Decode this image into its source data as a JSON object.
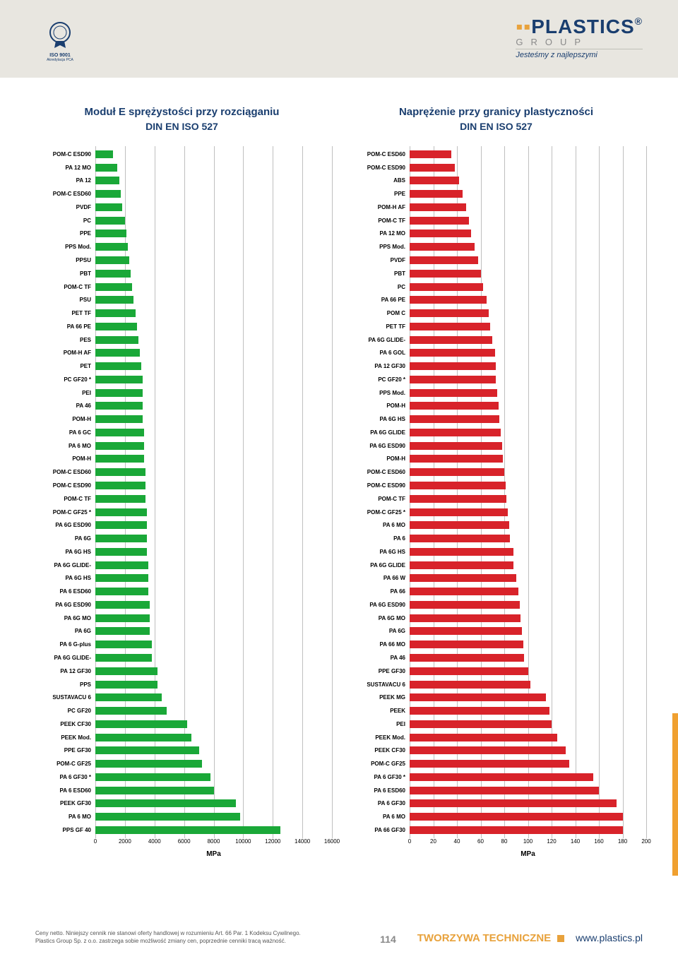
{
  "header": {
    "iso_label": "ISO 9001",
    "iso_sub": "Akredytacja PCA",
    "logo_main": "PLASTICS",
    "logo_sub": "GROUP",
    "logo_tag": "Jesteśmy z najlepszymi"
  },
  "chart_left": {
    "title": "Moduł E sprężystości przy rozciąganiu",
    "subtitle": "DIN EN ISO 527",
    "type": "bar-horizontal",
    "bar_color": "#1aa838",
    "grid_color": "#bfbfbf",
    "xlim": [
      0,
      16000
    ],
    "xticks": [
      0,
      2000,
      4000,
      6000,
      8000,
      10000,
      12000,
      14000,
      16000
    ],
    "xlabel": "MPa",
    "label_fontsize": 8,
    "title_fontsize": 15,
    "categories": [
      "POM-C ESD90",
      "PA 12 MO",
      "PA 12",
      "POM-C ESD60",
      "PVDF",
      "PC",
      "PPE",
      "PPS Mod.",
      "PPSU",
      "PBT",
      "POM-C TF",
      "PSU",
      "PET TF",
      "PA 66 PE",
      "PES",
      "POM-H AF",
      "PET",
      "PC GF20 *",
      "PEI",
      "PA 46",
      "POM-H",
      "PA 6 GC",
      "PA 6 MO",
      "POM-H",
      "POM-C ESD60",
      "POM-C ESD90",
      "POM-C TF",
      "POM-C GF25 *",
      "PA 6G ESD90",
      "PA 6G",
      "PA 6G HS",
      "PA 6G GLIDE-",
      "PA 6G HS",
      "PA 6 ESD60",
      "PA 6G ESD90",
      "PA 6G MO",
      "PA 6G",
      "PA 6 G-plus",
      "PA 6G GLIDE-",
      "PA 12 GF30",
      "PPS",
      "SUSTAVACU 6",
      "PC GF20",
      "PEEK CF30",
      "PEEK Mod.",
      "PPE GF30",
      "POM-C GF25",
      "PA 6 GF30 *",
      "PA 6 ESD60",
      "PEEK GF30",
      "PA 6 MO",
      "PPS GF 40"
    ],
    "values": [
      1200,
      1500,
      1600,
      1700,
      1800,
      2000,
      2100,
      2200,
      2300,
      2400,
      2500,
      2600,
      2700,
      2800,
      2900,
      3000,
      3100,
      3200,
      3200,
      3200,
      3200,
      3300,
      3300,
      3300,
      3400,
      3400,
      3400,
      3500,
      3500,
      3500,
      3500,
      3600,
      3600,
      3600,
      3700,
      3700,
      3700,
      3800,
      3800,
      4200,
      4200,
      4500,
      4800,
      6200,
      6500,
      7000,
      7200,
      7800,
      8000,
      9500,
      9800,
      12500
    ]
  },
  "chart_right": {
    "title": "Naprężenie przy granicy plastyczności",
    "subtitle": "DIN EN ISO 527",
    "type": "bar-horizontal",
    "bar_color": "#d8232a",
    "grid_color": "#bfbfbf",
    "xlim": [
      0,
      200
    ],
    "xticks": [
      0,
      20,
      40,
      60,
      80,
      100,
      120,
      140,
      160,
      180,
      200
    ],
    "xlabel": "MPa",
    "label_fontsize": 8,
    "title_fontsize": 15,
    "categories": [
      "POM-C ESD60",
      "POM-C ESD90",
      "ABS",
      "PPE",
      "POM-H AF",
      "POM-C TF",
      "PA 12 MO",
      "PPS Mod.",
      "PVDF",
      "PBT",
      "PC",
      "PA 66 PE",
      "POM C",
      "PET TF",
      "PA 6G GLIDE-",
      "PA 6 GOL",
      "PA 12 GF30",
      "PC GF20 *",
      "PPS Mod.",
      "POM-H",
      "PA 6G HS",
      "PA 6G GLIDE",
      "PA 6G ESD90",
      "POM-H",
      "POM-C ESD60",
      "POM-C ESD90",
      "POM-C TF",
      "POM-C GF25 *",
      "PA 6 MO",
      "PA 6",
      "PA 6G HS",
      "PA 6G GLIDE",
      "PA 66 W",
      "PA 66",
      "PA 6G ESD90",
      "PA 6G MO",
      "PA 6G",
      "PA 66 MO",
      "PA 46",
      "PPE GF30",
      "SUSTAVACU 6",
      "PEEK MG",
      "PEEK",
      "PEI",
      "PEEK Mod.",
      "PEEK CF30",
      "POM-C GF25",
      "PA 6 GF30 *",
      "PA 6 ESD60",
      "PA 6 GF30",
      "PA 6 MO",
      "PA 66 GF30"
    ],
    "values": [
      35,
      38,
      42,
      45,
      48,
      50,
      52,
      55,
      58,
      60,
      62,
      65,
      67,
      68,
      70,
      72,
      73,
      73,
      74,
      75,
      76,
      77,
      78,
      79,
      80,
      81,
      82,
      83,
      84,
      85,
      88,
      88,
      90,
      92,
      93,
      94,
      95,
      96,
      97,
      100,
      102,
      115,
      118,
      120,
      125,
      132,
      135,
      155,
      160,
      175,
      180,
      180
    ]
  },
  "footer": {
    "disclaimer_l1": "Ceny netto. Niniejszy cennik nie stanowi oferty handlowej w rozumieniu Art. 66 Par. 1 Kodeksu Cywilnego.",
    "disclaimer_l2": "Plastics Group Sp. z o.o. zastrzega sobie możliwość zmiany cen, poprzednie cenniki tracą ważność.",
    "page": "114",
    "section": "TWORZYWA TECHNICZNE",
    "url": "www.plastics.pl"
  },
  "colors": {
    "header_bg": "#e8e6e0",
    "navy": "#1a3e6f",
    "green": "#1aa838",
    "red": "#d8232a",
    "orange": "#e8a23c",
    "grey": "#8a8a8a",
    "grid": "#bfbfbf"
  }
}
